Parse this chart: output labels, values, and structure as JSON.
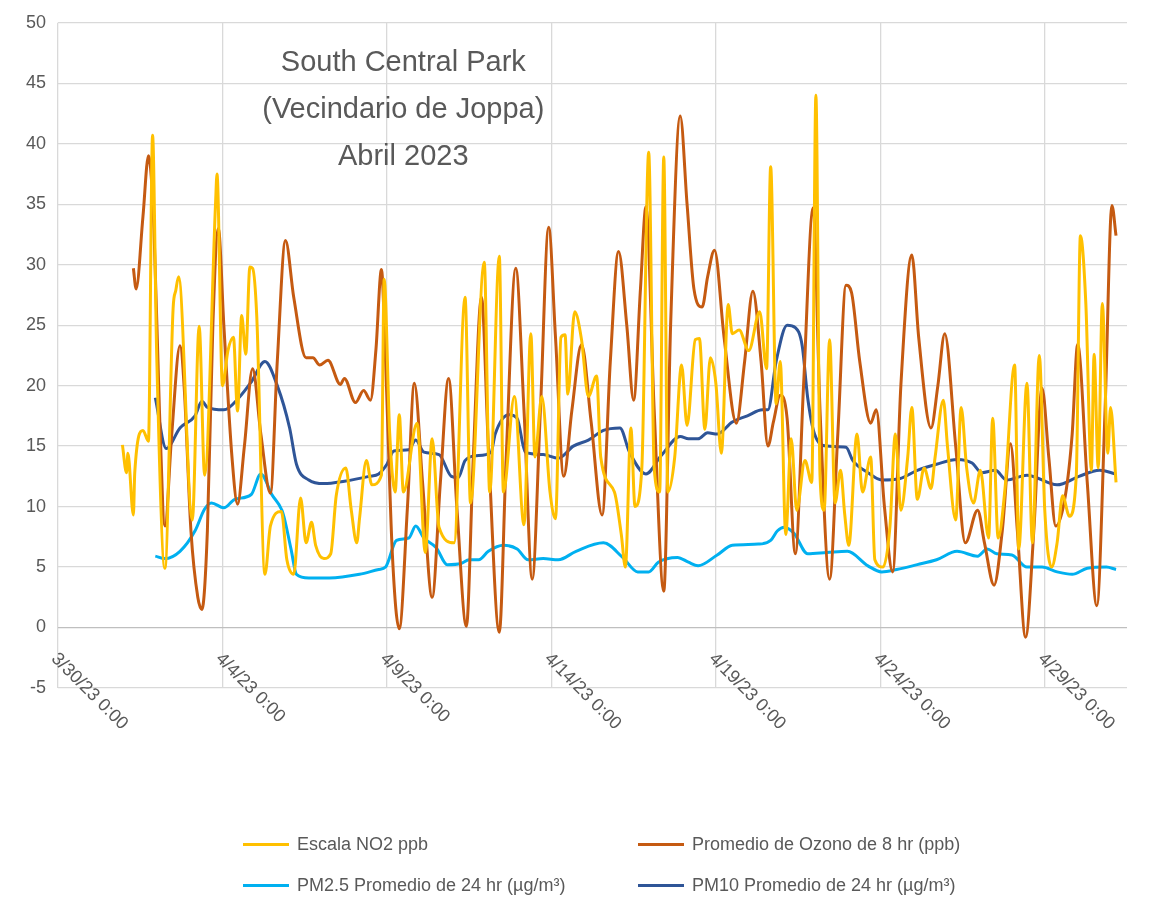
{
  "chart_data": {
    "type": "line",
    "title": "South Central Park\n(Vecindario de Joppa)\nAbril 2023",
    "xlim": [
      "2023-03-30",
      "2023-05-01T12:00"
    ],
    "xticks": [
      {
        "value": "2023-03-30",
        "label": "3/30/23 0:00"
      },
      {
        "value": "2023-04-04",
        "label": "4/4/23 0:00"
      },
      {
        "value": "2023-04-09",
        "label": "4/9/23 0:00"
      },
      {
        "value": "2023-04-14",
        "label": "4/14/23 0:00"
      },
      {
        "value": "2023-04-19",
        "label": "4/19/23 0:00"
      },
      {
        "value": "2023-04-24",
        "label": "4/24/23 0:00"
      },
      {
        "value": "2023-04-29",
        "label": "4/29/23 0:00"
      }
    ],
    "ylim": [
      -5,
      50
    ],
    "yticks": [
      -5,
      0,
      5,
      10,
      15,
      20,
      25,
      30,
      35,
      40,
      45,
      50
    ],
    "grid": true,
    "legend": "bottom",
    "marker": "none",
    "series": [
      {
        "name": "Escala NO2 ppb",
        "color": "#ffc000",
        "x": [
          "2023-03-31T23:00",
          "2023-04-01T02:00",
          "2023-04-01T03:00",
          "2023-04-01T07:00",
          "2023-04-01T08:00",
          "2023-04-01T14:00",
          "2023-04-01T18:00",
          "2023-04-01T21:00",
          "2023-04-02T00:00",
          "2023-04-02T06:00",
          "2023-04-02T12:00",
          "2023-04-02T14:00",
          "2023-04-02T16:00",
          "2023-04-03T02:00",
          "2023-04-03T07:00",
          "2023-04-03T11:00",
          "2023-04-03T19:00",
          "2023-04-03T20:00",
          "2023-04-04T00:00",
          "2023-04-04T04:00",
          "2023-04-04T08:00",
          "2023-04-04T11:00",
          "2023-04-04T14:00",
          "2023-04-04T17:00",
          "2023-04-04T20:00",
          "2023-04-04T22:00",
          "2023-04-05T01:00",
          "2023-04-05T07:00",
          "2023-04-05T11:00",
          "2023-04-05T19:00",
          "2023-04-05T23:00",
          "2023-04-06T04:00",
          "2023-04-06T09:00",
          "2023-04-06T13:00",
          "2023-04-06T17:00",
          "2023-04-06T20:00",
          "2023-04-07T02:00",
          "2023-04-07T07:00",
          "2023-04-07T11:00",
          "2023-04-07T18:00",
          "2023-04-07T22:00",
          "2023-04-08T02:00",
          "2023-04-08T04:00",
          "2023-04-08T09:00",
          "2023-04-08T13:00",
          "2023-04-08T20:00",
          "2023-04-08T22:00",
          "2023-04-09T02:00",
          "2023-04-09T06:00",
          "2023-04-09T09:00",
          "2023-04-09T12:00",
          "2023-04-09T22:00",
          "2023-04-10T04:00",
          "2023-04-10T09:00",
          "2023-04-10T14:00",
          "2023-04-11T01:00",
          "2023-04-11T09:00",
          "2023-04-11T13:00",
          "2023-04-11T23:00",
          "2023-04-12T03:00",
          "2023-04-12T10:00",
          "2023-04-12T13:00",
          "2023-04-12T21:00",
          "2023-04-13T04:00",
          "2023-04-13T09:00",
          "2023-04-13T12:00",
          "2023-04-13T17:00",
          "2023-04-13T23:00",
          "2023-04-14T03:00",
          "2023-04-14T07:00",
          "2023-04-14T10:00",
          "2023-04-14T12:00",
          "2023-04-14T17:00",
          "2023-04-14T22:00",
          "2023-04-15T03:00",
          "2023-04-15T09:00",
          "2023-04-15T12:00",
          "2023-04-15T22:00",
          "2023-04-16T03:00",
          "2023-04-16T06:00",
          "2023-04-16T10:00",
          "2023-04-16T13:00",
          "2023-04-16T18:00",
          "2023-04-16T23:00",
          "2023-04-17T03:00",
          "2023-04-17T07:00",
          "2023-04-17T10:00",
          "2023-04-17T13:00",
          "2023-04-17T18:00",
          "2023-04-17T23:00",
          "2023-04-18T03:00",
          "2023-04-18T09:00",
          "2023-04-18T12:00",
          "2023-04-18T16:00",
          "2023-04-18T20:00",
          "2023-04-19T00:00",
          "2023-04-19T04:00",
          "2023-04-19T09:00",
          "2023-04-19T12:00",
          "2023-04-19T17:00",
          "2023-04-20T00:00",
          "2023-04-20T08:00",
          "2023-04-20T13:00",
          "2023-04-20T16:00",
          "2023-04-20T20:00",
          "2023-04-20T23:00",
          "2023-04-21T03:00",
          "2023-04-21T07:00",
          "2023-04-21T11:00",
          "2023-04-21T17:00",
          "2023-04-21T22:00",
          "2023-04-22T01:00",
          "2023-04-22T04:00",
          "2023-04-22T07:00",
          "2023-04-22T11:00",
          "2023-04-22T15:00",
          "2023-04-22T19:00",
          "2023-04-22T22:00",
          "2023-04-23T01:00",
          "2023-04-23T07:00",
          "2023-04-23T11:00",
          "2023-04-23T17:00",
          "2023-04-23T20:00",
          "2023-04-24T02:00",
          "2023-04-24T07:00",
          "2023-04-24T11:00",
          "2023-04-24T15:00",
          "2023-04-24T20:00",
          "2023-04-24T23:00",
          "2023-04-25T03:00",
          "2023-04-25T08:00",
          "2023-04-25T13:00",
          "2023-04-25T16:00",
          "2023-04-25T22:00",
          "2023-04-26T01:00",
          "2023-04-26T07:00",
          "2023-04-26T11:00",
          "2023-04-26T15:00",
          "2023-04-26T20:00",
          "2023-04-27T01:00",
          "2023-04-27T07:00",
          "2023-04-27T10:00",
          "2023-04-27T14:00",
          "2023-04-27T19:00",
          "2023-04-28T02:00",
          "2023-04-28T05:00",
          "2023-04-28T11:00",
          "2023-04-28T15:00",
          "2023-04-28T20:00",
          "2023-04-29T00:00",
          "2023-04-29T05:00",
          "2023-04-29T09:00",
          "2023-04-29T13:00",
          "2023-04-29T18:00",
          "2023-04-29T23:00",
          "2023-04-30T02:00",
          "2023-04-30T06:00",
          "2023-04-30T10:00",
          "2023-04-30T12:00",
          "2023-04-30T15:00",
          "2023-04-30T18:00",
          "2023-04-30T22:00",
          "2023-05-01T00:00",
          "2023-05-01T04:00"
        ],
        "values": [
          15.1,
          12.8,
          14.4,
          9.3,
          12.8,
          16.3,
          15.4,
          40.7,
          22.6,
          4.9,
          26.4,
          27.9,
          29.0,
          8.9,
          24.9,
          12.6,
          35.2,
          37.5,
          20.0,
          22.9,
          24.0,
          17.9,
          25.8,
          22.6,
          29.8,
          29.7,
          25.8,
          4.4,
          8.4,
          9.6,
          5.6,
          4.4,
          10.7,
          7.0,
          8.7,
          6.8,
          5.7,
          6.1,
          10.9,
          13.2,
          9.7,
          7.0,
          9.0,
          13.8,
          11.8,
          12.6,
          28.8,
          16.1,
          11.2,
          17.6,
          11.2,
          16.9,
          6.2,
          15.6,
          8.3,
          7.0,
          27.3,
          10.3,
          30.2,
          11.2,
          30.7,
          11.2,
          19.1,
          8.5,
          24.3,
          14.1,
          19.1,
          11.2,
          9.0,
          24.0,
          24.2,
          19.3,
          26.1,
          23.8,
          19.1,
          20.8,
          14.1,
          11.2,
          7.7,
          5.0,
          16.5,
          10.0,
          13.2,
          39.3,
          13.2,
          11.2,
          38.9,
          11.2,
          14.1,
          21.7,
          16.7,
          23.8,
          23.9,
          16.4,
          22.3,
          20.2,
          14.4,
          26.7,
          24.3,
          24.6,
          22.9,
          26.1,
          21.4,
          38.1,
          18.5,
          22.0,
          7.7,
          15.6,
          9.7,
          13.8,
          12.0,
          44.0,
          12.6,
          9.7,
          23.8,
          10.3,
          13.0,
          9.4,
          6.8,
          16.0,
          11.2,
          14.1,
          5.6,
          5.0,
          8.3,
          16.0,
          9.7,
          14.1,
          18.2,
          10.6,
          13.2,
          11.5,
          14.1,
          18.8,
          15.0,
          8.9,
          18.2,
          13.2,
          10.3,
          13.0,
          7.4,
          17.3,
          7.4,
          11.5,
          21.7,
          6.5,
          20.2,
          7.0,
          22.5,
          9.7,
          5.0,
          7.0,
          10.9,
          9.2,
          12.6,
          32.4,
          26.7,
          13.0,
          22.6,
          13.2,
          26.8,
          14.4,
          18.2,
          12.0
        ]
      },
      {
        "name": "Promedio de Ozono de 8 hr (ppb)",
        "color": "#c55a11",
        "x": [
          "2023-04-01T07:00",
          "2023-04-01T09:00",
          "2023-04-01T14:00",
          "2023-04-01T18:00",
          "2023-04-01T22:00",
          "2023-04-02T02:00",
          "2023-04-02T06:00",
          "2023-04-02T11:00",
          "2023-04-02T17:00",
          "2023-04-02T20:00",
          "2023-04-03T01:00",
          "2023-04-03T06:00",
          "2023-04-03T09:00",
          "2023-04-03T13:00",
          "2023-04-03T17:00",
          "2023-04-03T21:00",
          "2023-04-04T01:00",
          "2023-04-04T07:00",
          "2023-04-04T11:00",
          "2023-04-04T16:00",
          "2023-04-04T22:00",
          "2023-04-05T04:00",
          "2023-04-05T11:00",
          "2023-04-05T16:00",
          "2023-04-05T22:00",
          "2023-04-06T04:00",
          "2023-04-06T13:00",
          "2023-04-06T18:00",
          "2023-04-06T23:00",
          "2023-04-07T05:00",
          "2023-04-07T14:00",
          "2023-04-07T17:00",
          "2023-04-08T01:00",
          "2023-04-08T07:00",
          "2023-04-08T12:00",
          "2023-04-08T16:00",
          "2023-04-08T20:00",
          "2023-04-08T23:00",
          "2023-04-09T04:00",
          "2023-04-09T09:00",
          "2023-04-09T15:00",
          "2023-04-09T20:00",
          "2023-04-10T02:00",
          "2023-04-10T09:00",
          "2023-04-10T15:00",
          "2023-04-10T21:00",
          "2023-04-11T03:00",
          "2023-04-11T10:00",
          "2023-04-11T15:00",
          "2023-04-11T21:00",
          "2023-04-12T02:00",
          "2023-04-12T10:00",
          "2023-04-12T15:00",
          "2023-04-12T22:00",
          "2023-04-13T04:00",
          "2023-04-13T10:00",
          "2023-04-13T16:00",
          "2023-04-13T22:00",
          "2023-04-14T03:00",
          "2023-04-14T09:00",
          "2023-04-14T15:00",
          "2023-04-14T22:00",
          "2023-04-15T05:00",
          "2023-04-15T13:00",
          "2023-04-15T19:00",
          "2023-04-16T01:00",
          "2023-04-16T07:00",
          "2023-04-16T12:00",
          "2023-04-16T17:00",
          "2023-04-16T21:00",
          "2023-04-17T03:00",
          "2023-04-17T10:00",
          "2023-04-17T15:00",
          "2023-04-17T22:00",
          "2023-04-18T03:00",
          "2023-04-18T08:00",
          "2023-04-18T14:00",
          "2023-04-18T18:00",
          "2023-04-18T23:00",
          "2023-04-19T06:00",
          "2023-04-19T15:00",
          "2023-04-19T21:00",
          "2023-04-20T03:00",
          "2023-04-20T09:00",
          "2023-04-20T14:00",
          "2023-04-20T18:00",
          "2023-04-20T23:00",
          "2023-04-21T04:00",
          "2023-04-21T10:00",
          "2023-04-21T16:00",
          "2023-04-21T23:00",
          "2023-04-22T04:00",
          "2023-04-22T11:00",
          "2023-04-22T17:00",
          "2023-04-22T23:00",
          "2023-04-23T03:00",
          "2023-04-23T09:00",
          "2023-04-23T17:00",
          "2023-04-23T21:00",
          "2023-04-24T03:00",
          "2023-04-24T09:00",
          "2023-04-24T15:00",
          "2023-04-24T23:00",
          "2023-04-25T04:00",
          "2023-04-25T13:00",
          "2023-04-25T18:00",
          "2023-04-25T23:00",
          "2023-04-26T07:00",
          "2023-04-26T14:00",
          "2023-04-26T23:00",
          "2023-04-27T04:00",
          "2023-04-27T11:00",
          "2023-04-27T17:00",
          "2023-04-27T23:00",
          "2023-04-28T04:00",
          "2023-04-28T10:00",
          "2023-04-28T16:00",
          "2023-04-28T22:00",
          "2023-04-29T03:00",
          "2023-04-29T08:00",
          "2023-04-29T15:00",
          "2023-04-29T20:00",
          "2023-04-30T00:00",
          "2023-04-30T07:00",
          "2023-04-30T14:00",
          "2023-04-30T20:00",
          "2023-05-01T01:00",
          "2023-05-01T04:00"
        ],
        "values": [
          29.7,
          28.0,
          34,
          39.0,
          33,
          18,
          8.4,
          16,
          23.3,
          20,
          8,
          2.5,
          1.5,
          8,
          25,
          33.0,
          25,
          14,
          10.2,
          15,
          21.4,
          16,
          11.1,
          22,
          32.0,
          27.3,
          22.3,
          22.3,
          21.7,
          22.1,
          20.1,
          20.6,
          18.6,
          19.6,
          18.8,
          23,
          29.6,
          22,
          6,
          -0.1,
          10,
          20.2,
          12,
          2.5,
          12,
          20.6,
          10,
          0.1,
          14,
          27.3,
          15,
          -0.4,
          14,
          29.7,
          18,
          4.0,
          18,
          33.1,
          24,
          12.5,
          18,
          23.4,
          17,
          9.3,
          22,
          31.1,
          25,
          18.8,
          28,
          34.8,
          18,
          3.0,
          25,
          42.3,
          35,
          28.0,
          26.5,
          29,
          31.2,
          24,
          16.9,
          22,
          27.8,
          22,
          15.0,
          17,
          19.2,
          17.3,
          6.1,
          20,
          34.7,
          18,
          4.0,
          16,
          28.3,
          27.7,
          22,
          16.9,
          18.0,
          10,
          4.6,
          20,
          30.8,
          24,
          16.5,
          20,
          24.3,
          15,
          7.0,
          9.7,
          7,
          3.5,
          8,
          15.2,
          8,
          -0.8,
          8,
          19.8,
          14,
          8.4,
          10.9,
          16,
          23.4,
          12,
          1.8,
          18,
          34.9,
          32.4
        ]
      },
      {
        "name": "PM2.5 Promedio de 24 hr (µg/m³)",
        "color": "#00b0f0",
        "x": [
          "2023-04-01T23:00",
          "2023-04-02T06:00",
          "2023-04-02T17:00",
          "2023-04-03T04:00",
          "2023-04-03T11:00",
          "2023-04-03T16:00",
          "2023-04-04T01:00",
          "2023-04-04T09:00",
          "2023-04-04T21:00",
          "2023-04-05T04:00",
          "2023-04-05T12:00",
          "2023-04-05T20:00",
          "2023-04-06T02:00",
          "2023-04-06T06:00",
          "2023-04-06T15:00",
          "2023-04-07T06:00",
          "2023-04-08T04:00",
          "2023-04-08T18:00",
          "2023-04-08T23:00",
          "2023-04-09T07:00",
          "2023-04-09T16:00",
          "2023-04-09T21:00",
          "2023-04-10T03:00",
          "2023-04-10T12:00",
          "2023-04-10T20:00",
          "2023-04-11T06:00",
          "2023-04-11T12:00",
          "2023-04-11T19:00",
          "2023-04-12T02:00",
          "2023-04-12T13:00",
          "2023-04-12T23:00",
          "2023-04-13T07:00",
          "2023-04-13T18:00",
          "2023-04-14T05:00",
          "2023-04-14T18:00",
          "2023-04-15T14:00",
          "2023-04-16T04:00",
          "2023-04-16T15:00",
          "2023-04-16T23:00",
          "2023-04-17T06:00",
          "2023-04-17T20:00",
          "2023-04-18T04:00",
          "2023-04-18T11:00",
          "2023-04-19T01:00",
          "2023-04-19T12:00",
          "2023-04-20T07:00",
          "2023-04-20T16:00",
          "2023-04-20T21:00",
          "2023-04-21T02:00",
          "2023-04-21T09:00",
          "2023-04-21T19:00",
          "2023-04-22T09:00",
          "2023-04-23T00:00",
          "2023-04-23T15:00",
          "2023-04-24T01:00",
          "2023-04-24T12:00",
          "2023-04-25T03:00",
          "2023-04-25T17:00",
          "2023-04-26T08:00",
          "2023-04-26T23:00",
          "2023-04-27T06:00",
          "2023-04-27T13:00",
          "2023-04-28T00:00",
          "2023-04-28T11:00",
          "2023-04-28T22:00",
          "2023-04-29T09:00",
          "2023-04-29T20:00",
          "2023-04-30T07:00",
          "2023-04-30T21:00",
          "2023-05-01T04:00"
        ],
        "values": [
          5.9,
          5.7,
          6.3,
          8.0,
          9.8,
          10.3,
          9.9,
          10.6,
          11.0,
          12.7,
          11.0,
          9.5,
          6.5,
          4.4,
          4.1,
          4.1,
          4.4,
          4.8,
          5.0,
          7.2,
          7.4,
          8.4,
          7.4,
          6.6,
          5.2,
          5.3,
          5.6,
          5.6,
          6.3,
          6.8,
          6.5,
          5.6,
          5.7,
          5.6,
          6.3,
          7.0,
          5.8,
          4.6,
          4.6,
          5.4,
          5.8,
          5.4,
          5.1,
          6.0,
          6.8,
          6.9,
          7.2,
          8.0,
          8.3,
          7.8,
          6.1,
          6.2,
          6.3,
          5.1,
          4.6,
          4.8,
          5.2,
          5.6,
          6.3,
          5.9,
          6.5,
          6.1,
          6.0,
          5.0,
          5.0,
          4.6,
          4.4,
          4.9,
          5.0,
          4.8
        ]
      },
      {
        "name": "PM10 Promedio de 24 hr (µg/m³)",
        "color": "#2f5597",
        "x": [
          "2023-04-01T23:00",
          "2023-04-02T07:00",
          "2023-04-02T17:00",
          "2023-04-03T04:00",
          "2023-04-03T09:00",
          "2023-04-03T13:00",
          "2023-04-04T01:00",
          "2023-04-04T12:00",
          "2023-04-04T21:00",
          "2023-04-05T07:00",
          "2023-04-05T16:00",
          "2023-04-06T01:00",
          "2023-04-06T06:00",
          "2023-04-06T15:00",
          "2023-04-07T02:00",
          "2023-04-07T17:00",
          "2023-04-08T11:00",
          "2023-04-08T18:00",
          "2023-04-09T00:00",
          "2023-04-09T05:00",
          "2023-04-09T16:00",
          "2023-04-09T21:00",
          "2023-04-10T03:00",
          "2023-04-10T14:00",
          "2023-04-10T23:00",
          "2023-04-11T04:00",
          "2023-04-11T09:00",
          "2023-04-11T17:00",
          "2023-04-12T04:00",
          "2023-04-12T07:00",
          "2023-04-12T17:00",
          "2023-04-12T23:00",
          "2023-04-13T05:00",
          "2023-04-13T18:00",
          "2023-04-14T05:00",
          "2023-04-14T16:00",
          "2023-04-15T03:00",
          "2023-04-15T14:00",
          "2023-04-16T02:00",
          "2023-04-16T09:00",
          "2023-04-16T21:00",
          "2023-04-17T08:00",
          "2023-04-17T22:00",
          "2023-04-18T04:00",
          "2023-04-18T11:00",
          "2023-04-18T18:00",
          "2023-04-19T01:00",
          "2023-04-19T12:00",
          "2023-04-19T23:00",
          "2023-04-20T10:00",
          "2023-04-20T14:00",
          "2023-04-20T20:00",
          "2023-04-21T04:00",
          "2023-04-21T10:00",
          "2023-04-21T15:00",
          "2023-04-21T19:00",
          "2023-04-22T00:00",
          "2023-04-22T09:00",
          "2023-04-22T23:00",
          "2023-04-23T04:00",
          "2023-04-23T15:00",
          "2023-04-24T01:00",
          "2023-04-24T14:00",
          "2023-04-25T03:00",
          "2023-04-25T17:00",
          "2023-04-26T08:00",
          "2023-04-26T19:00",
          "2023-04-27T02:00",
          "2023-04-27T12:00",
          "2023-04-27T20:00",
          "2023-04-28T11:00",
          "2023-04-29T09:00",
          "2023-04-30T01:00",
          "2023-04-30T16:00",
          "2023-05-01T04:00"
        ],
        "values": [
          19.0,
          14.8,
          16.5,
          17.5,
          18.7,
          18.2,
          18.0,
          19.0,
          20.3,
          22.0,
          20.0,
          16.5,
          13.5,
          12.2,
          11.9,
          12.1,
          12.5,
          12.7,
          13.5,
          14.6,
          14.7,
          15.5,
          14.5,
          14.3,
          12.5,
          12.4,
          13.8,
          14.2,
          14.5,
          16.0,
          17.6,
          17.3,
          14.5,
          14.3,
          14.0,
          15.0,
          15.5,
          16.3,
          16.5,
          14.5,
          12.7,
          14.2,
          15.8,
          15.6,
          15.6,
          16.1,
          16.0,
          17.0,
          17.5,
          18.0,
          18.0,
          22.0,
          25.0,
          24.8,
          23.3,
          19.0,
          16.0,
          15.0,
          14.9,
          13.8,
          12.8,
          12.2,
          12.3,
          13.0,
          13.5,
          13.9,
          13.6,
          12.8,
          13.0,
          12.2,
          12.6,
          11.8,
          12.5,
          13.0,
          12.7
        ]
      }
    ]
  }
}
